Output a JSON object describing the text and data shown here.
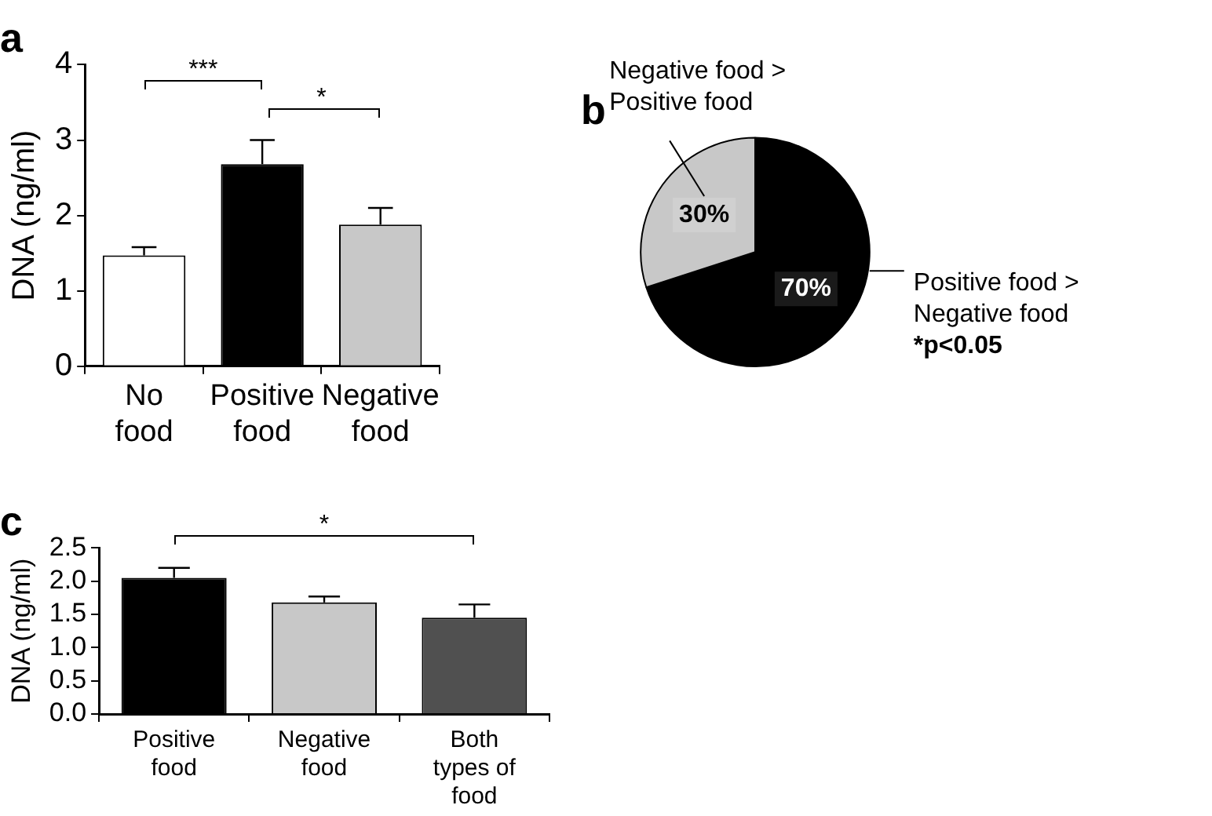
{
  "chart_data": [
    {
      "type": "bar",
      "title": "a",
      "ylabel": "DNA (ng/ml)",
      "categories": [
        "No\nfood",
        "Positive\nfood",
        "Negative\nfood"
      ],
      "values": [
        1.47,
        2.68,
        1.88
      ],
      "errors": [
        0.11,
        0.32,
        0.22
      ],
      "colors": [
        "#ffffff",
        "#000000",
        "#c8c8c8"
      ],
      "ylim": [
        0,
        4
      ],
      "yticks": [
        0,
        1,
        2,
        3,
        4
      ],
      "grid": false,
      "legend": false,
      "annotations": [
        "***",
        "*"
      ]
    },
    {
      "type": "pie",
      "title": "b",
      "categories": [
        "Positive food >\nNegative food",
        "Negative food >\nPositive food"
      ],
      "values": [
        70,
        30
      ],
      "colors": [
        "#000000",
        "#c8c8c8"
      ],
      "value_labels": [
        "70%",
        "30%"
      ],
      "legend": false,
      "annotations": [
        "*p<0.05"
      ]
    },
    {
      "type": "bar",
      "title": "c",
      "ylabel": "DNA (ng/ml)",
      "categories": [
        "Positive\nfood",
        "Negative\nfood",
        "Both\ntypes of\nfood"
      ],
      "values": [
        2.05,
        1.68,
        1.45
      ],
      "errors": [
        0.15,
        0.09,
        0.2
      ],
      "colors": [
        "#000000",
        "#c8c8c8",
        "#505050"
      ],
      "ylim": [
        0,
        2.5
      ],
      "yticks": [
        {
          "value": 0,
          "label": "0.0"
        },
        {
          "value": 0.5,
          "label": "0.5"
        },
        {
          "value": 1,
          "label": "1.0"
        },
        {
          "value": 1.5,
          "label": "1.5"
        },
        {
          "value": 2,
          "label": "2.0"
        },
        {
          "value": 2.5,
          "label": "2.5"
        }
      ],
      "grid": false,
      "legend": false,
      "annotations": [
        "*"
      ]
    }
  ]
}
